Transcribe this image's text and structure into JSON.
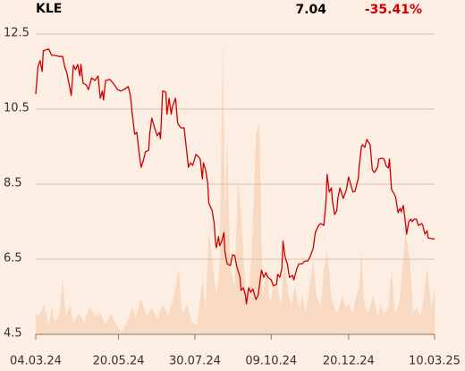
{
  "chart_data": {
    "type": "line",
    "title": "KLE",
    "last_price": "7.04",
    "change": "-35.41%",
    "xlim": [
      0,
      371
    ],
    "xticks": [
      {
        "value": 0,
        "label": "04.03.24"
      },
      {
        "value": 77,
        "label": "20.05.24"
      },
      {
        "value": 148,
        "label": "30.07.24"
      },
      {
        "value": 219,
        "label": "09.10.24"
      },
      {
        "value": 291,
        "label": "20.12.24"
      },
      {
        "value": 371,
        "label": "10.03.25"
      }
    ],
    "ylim": [
      4.5,
      12.5
    ],
    "yticks": [
      12.5,
      10.5,
      8.5,
      6.5,
      4.5
    ],
    "grid": true,
    "y2lim": [
      0,
      100
    ],
    "series": [
      {
        "color": "#cc0000",
        "x": [
          0,
          2,
          4,
          6,
          7,
          12,
          15,
          18,
          22,
          25,
          27,
          29,
          32,
          33,
          35,
          37,
          39,
          41,
          42,
          44,
          47,
          49,
          52,
          55,
          58,
          60,
          62,
          63,
          65,
          69,
          72,
          76,
          79,
          82,
          86,
          88,
          90,
          92,
          94,
          96,
          98,
          100,
          102,
          105,
          106,
          108,
          111,
          113,
          115,
          116,
          118,
          121,
          122,
          124,
          126,
          127,
          130,
          132,
          135,
          138,
          140,
          142,
          144,
          146,
          149,
          151,
          153,
          155,
          156,
          158,
          160,
          161,
          164,
          166,
          167,
          168,
          170,
          171,
          173,
          175,
          176,
          178,
          181,
          183,
          185,
          187,
          190,
          191,
          193,
          195,
          196,
          198,
          200,
          202,
          204,
          205,
          207,
          209,
          210,
          212,
          214,
          216,
          219,
          221,
          224,
          225,
          227,
          229,
          230,
          232,
          234,
          236,
          239,
          240,
          243,
          245,
          248,
          250,
          253,
          255,
          258,
          260,
          263,
          265,
          268,
          270,
          271,
          273,
          275,
          276,
          278,
          280,
          281,
          283,
          285,
          286,
          289,
          291,
          293,
          295,
          297,
          300,
          301,
          303,
          304,
          306,
          308,
          309,
          311,
          313,
          315,
          318,
          319,
          322,
          324,
          326,
          328,
          329,
          331,
          334,
          335,
          337,
          339,
          340,
          342,
          344,
          345,
          347,
          349,
          350,
          352,
          354,
          356,
          359,
          360,
          362,
          364,
          365,
          368,
          371
        ],
        "values": [
          10.9,
          11.62,
          11.79,
          11.5,
          12.05,
          12.1,
          11.93,
          11.93,
          11.9,
          11.9,
          11.62,
          11.45,
          11.02,
          10.86,
          11.67,
          11.55,
          11.69,
          11.38,
          11.69,
          11.19,
          11.14,
          11.02,
          11.33,
          11.26,
          11.38,
          10.79,
          10.98,
          10.74,
          11.26,
          11.29,
          11.19,
          11.02,
          10.98,
          11.02,
          11.1,
          10.86,
          10.31,
          9.83,
          9.88,
          9.36,
          8.95,
          9.12,
          9.36,
          9.4,
          9.83,
          10.26,
          9.95,
          9.79,
          9.88,
          9.71,
          10.98,
          10.95,
          10.36,
          10.79,
          10.36,
          10.55,
          10.79,
          10.12,
          10.0,
          10.0,
          9.48,
          8.95,
          9.07,
          9.0,
          9.29,
          9.24,
          9.17,
          8.64,
          9.07,
          8.88,
          8.52,
          8.0,
          7.79,
          7.45,
          6.98,
          6.81,
          7.1,
          6.86,
          6.98,
          7.21,
          6.69,
          6.38,
          6.33,
          6.62,
          6.6,
          6.31,
          6.02,
          5.67,
          5.74,
          5.55,
          5.31,
          5.74,
          5.62,
          5.71,
          5.5,
          5.43,
          5.55,
          6.02,
          6.21,
          6.02,
          6.14,
          6.02,
          5.95,
          5.79,
          5.83,
          6.1,
          6.02,
          6.26,
          6.98,
          6.55,
          6.38,
          6.02,
          6.07,
          5.95,
          6.26,
          6.38,
          6.38,
          6.45,
          6.45,
          6.55,
          6.79,
          7.21,
          7.4,
          7.45,
          7.4,
          8.05,
          8.76,
          8.29,
          8.4,
          8.05,
          7.69,
          7.79,
          8.12,
          8.4,
          8.21,
          8.12,
          8.36,
          8.69,
          8.5,
          8.29,
          8.31,
          8.64,
          9.0,
          9.52,
          9.55,
          9.48,
          9.69,
          9.64,
          9.55,
          8.88,
          8.81,
          8.95,
          9.17,
          9.19,
          9.17,
          8.98,
          8.93,
          9.17,
          8.36,
          8.21,
          8.12,
          7.74,
          7.86,
          7.76,
          7.93,
          7.45,
          7.17,
          7.5,
          7.57,
          7.5,
          7.57,
          7.57,
          7.4,
          7.45,
          7.4,
          7.17,
          7.26,
          7.07,
          7.05,
          7.04
        ]
      },
      {
        "color": "#f8d9c2",
        "axis": "y2",
        "x": [
          0,
          3,
          8,
          12,
          15,
          18,
          22,
          25,
          28,
          32,
          35,
          40,
          45,
          50,
          55,
          60,
          65,
          70,
          75,
          80,
          85,
          90,
          93,
          98,
          103,
          108,
          113,
          118,
          123,
          128,
          133,
          136,
          141,
          145,
          150,
          155,
          158,
          161,
          165,
          168,
          171,
          174,
          176,
          178,
          181,
          185,
          188,
          191,
          195,
          198,
          201,
          205,
          208,
          211,
          215,
          218,
          221,
          225,
          228,
          231,
          235,
          238,
          241,
          245,
          248,
          251,
          255,
          258,
          261,
          265,
          268,
          271,
          275,
          278,
          281,
          285,
          288,
          291,
          295,
          298,
          301,
          303,
          305,
          308,
          311,
          314,
          318,
          321,
          324,
          328,
          331,
          334,
          338,
          341,
          344,
          348,
          351,
          354,
          358,
          361,
          364,
          368,
          371
        ],
        "values": [
          7,
          6,
          10,
          3,
          9,
          4,
          7,
          19,
          6,
          10,
          4,
          7,
          4,
          9,
          6,
          7,
          3,
          7,
          3,
          1,
          4,
          9,
          6,
          12,
          6,
          9,
          5,
          10,
          6,
          12,
          22,
          7,
          10,
          4,
          3,
          18,
          9,
          34,
          22,
          13,
          22,
          99,
          40,
          65,
          22,
          16,
          52,
          40,
          16,
          13,
          28,
          67,
          70,
          13,
          22,
          10,
          16,
          16,
          9,
          25,
          13,
          10,
          16,
          9,
          13,
          7,
          16,
          25,
          13,
          9,
          22,
          28,
          12,
          9,
          7,
          13,
          9,
          10,
          7,
          13,
          16,
          29,
          12,
          7,
          9,
          13,
          6,
          10,
          7,
          9,
          22,
          7,
          10,
          22,
          34,
          25,
          7,
          9,
          6,
          13,
          22,
          9,
          16
        ]
      }
    ]
  }
}
